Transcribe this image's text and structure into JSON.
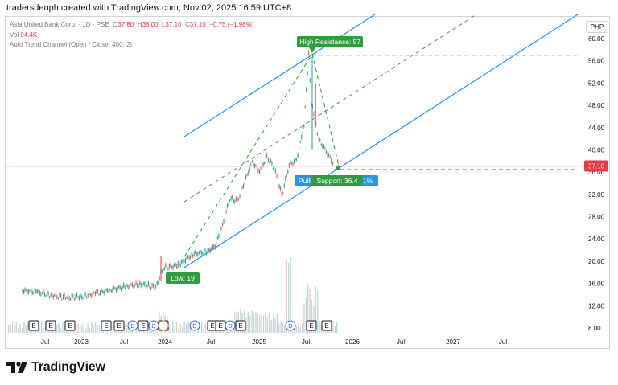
{
  "header": {
    "text": "tradersdenph created with TradingView.com, Nov 02, 2025 16:59 UTC+8"
  },
  "legend": {
    "symbol": "Asia United Bank Corp. · 1D · PSE",
    "o_label": "O",
    "o": "37.80",
    "h_label": "H",
    "h": "38.00",
    "l_label": "L",
    "l": "37.10",
    "c_label": "C",
    "c": "37.10",
    "change": "−0.75 (−1.98%)",
    "vol_label": "Vol",
    "vol": "94.4K",
    "indicator": "Auto Trend Channel (Open / Close, 400, 2)"
  },
  "currency": "PHP",
  "last_price": "37.10",
  "colors": {
    "up": "#26a69a",
    "down": "#ef5350",
    "channel": "#2196f3",
    "mid": "#787b86",
    "dashed_green": "#22a52c",
    "label_green": "#2e9d3d",
    "label_blue": "#2196f3",
    "price_tag": "#f23645"
  },
  "annotations": {
    "high": "High",
    "resistance": "Resistance: 57",
    "low": "Low: 19",
    "pullback": "Pullback",
    "pct": "1%",
    "support": "Support: 36.4"
  },
  "events": [
    "E",
    "E",
    "E",
    "E",
    "E",
    "D",
    "E",
    "D",
    "E",
    "D",
    "E",
    "E",
    "D",
    "E",
    "D",
    "E",
    "E",
    "D"
  ],
  "footer": {
    "brand": "TradingView"
  },
  "chart_data": {
    "type": "candlestick",
    "y_axis_side": "right",
    "y_ticks": [
      "60.00",
      "56.00",
      "52.00",
      "48.00",
      "44.00",
      "40.00",
      "36.00",
      "32.00",
      "28.00",
      "24.00",
      "20.00",
      "16.00",
      "12.00",
      "8.00"
    ],
    "x_ticks": [
      "Jul",
      "2023",
      "Jul",
      "2024",
      "Jul",
      "2025",
      "Jul",
      "2026",
      "Jul",
      "2027",
      "Jul"
    ],
    "price_series": [
      {
        "x": "2022-05",
        "y": 14.5
      },
      {
        "x": "2022-07",
        "y": 14.2
      },
      {
        "x": "2022-09",
        "y": 13.6
      },
      {
        "x": "2022-11",
        "y": 13.2
      },
      {
        "x": "2023-01",
        "y": 13.4
      },
      {
        "x": "2023-03",
        "y": 14.0
      },
      {
        "x": "2023-05",
        "y": 14.6
      },
      {
        "x": "2023-07",
        "y": 15.2
      },
      {
        "x": "2023-09",
        "y": 15.6
      },
      {
        "x": "2023-11",
        "y": 15.0
      },
      {
        "x": "2023-12",
        "y": 18.5
      },
      {
        "x": "2024-02",
        "y": 19.0
      },
      {
        "x": "2024-04",
        "y": 21.0
      },
      {
        "x": "2024-06",
        "y": 21.5
      },
      {
        "x": "2024-07",
        "y": 22.5
      },
      {
        "x": "2024-08",
        "y": 26.0
      },
      {
        "x": "2024-09",
        "y": 31.0
      },
      {
        "x": "2024-10",
        "y": 30.5
      },
      {
        "x": "2024-11",
        "y": 34.0
      },
      {
        "x": "2024-12",
        "y": 37.5
      },
      {
        "x": "2025-01",
        "y": 36.0
      },
      {
        "x": "2025-02",
        "y": 38.5
      },
      {
        "x": "2025-03",
        "y": 36.5
      },
      {
        "x": "2025-04",
        "y": 31.5
      },
      {
        "x": "2025-05",
        "y": 37.0
      },
      {
        "x": "2025-06",
        "y": 38.0
      },
      {
        "x": "2025-07",
        "y": 44.0
      },
      {
        "x": "2025-07-20",
        "y": 57.0
      },
      {
        "x": "2025-08",
        "y": 48.0
      },
      {
        "x": "2025-08-20",
        "y": 44.5
      },
      {
        "x": "2025-09",
        "y": 41.5
      },
      {
        "x": "2025-10",
        "y": 39.5
      },
      {
        "x": "2025-11-02",
        "y": 37.1
      }
    ],
    "last": 37.1,
    "high": 57,
    "low": 19,
    "support": 36.4,
    "resistance": 57,
    "ylim": [
      7,
      62
    ],
    "grid": false,
    "legend_position": "top-left"
  }
}
